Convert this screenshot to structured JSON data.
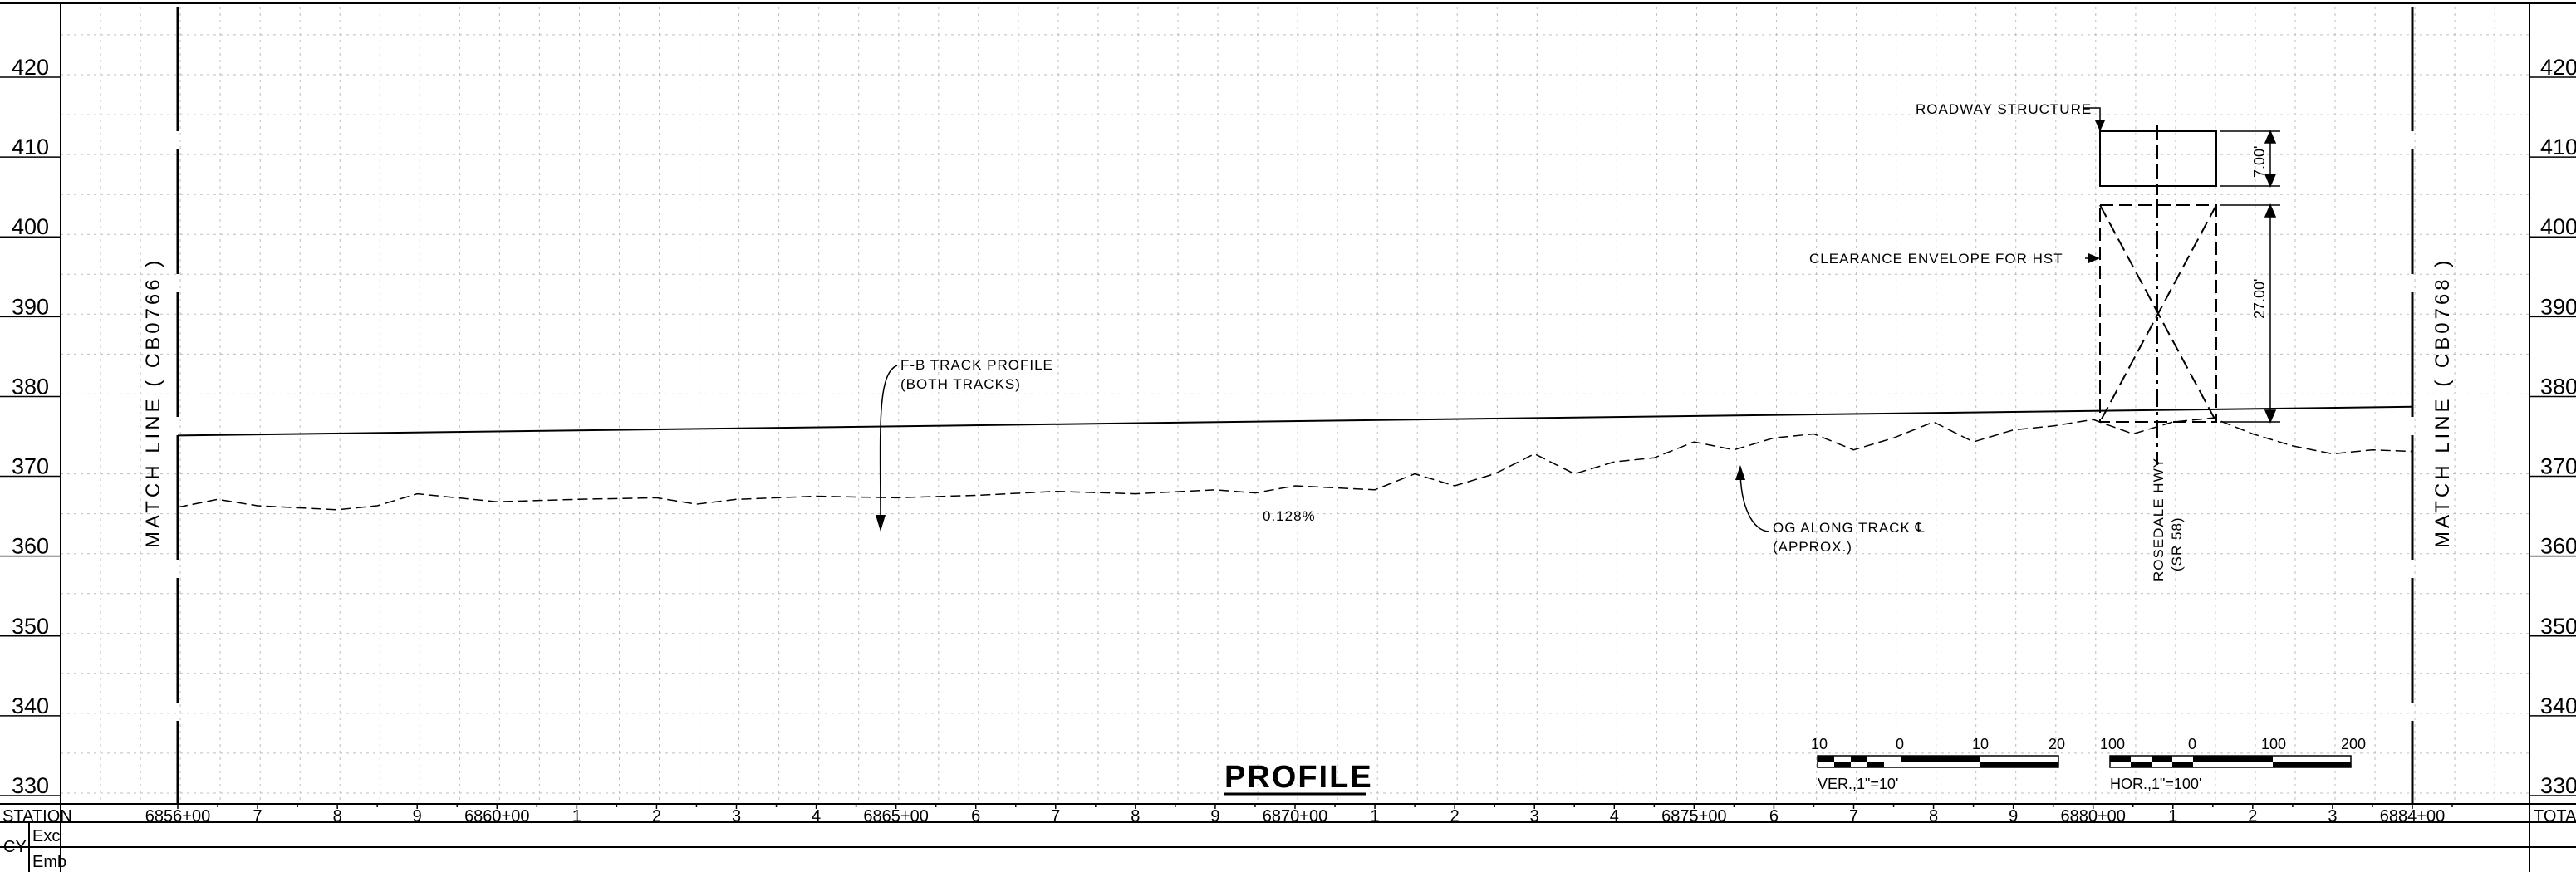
{
  "sheet": {
    "title": "PROFILE"
  },
  "elevations": {
    "labels": [
      "420",
      "410",
      "400",
      "390",
      "380",
      "370",
      "360",
      "350",
      "340",
      "330"
    ],
    "values": [
      420,
      410,
      400,
      390,
      380,
      370,
      360,
      350,
      340,
      330
    ]
  },
  "stations": {
    "row_label": "STATION",
    "total_label": "TOTA",
    "labels": [
      "6856+00",
      "7",
      "8",
      "9",
      "6860+00",
      "1",
      "2",
      "3",
      "4",
      "6865+00",
      "6",
      "7",
      "8",
      "9",
      "6870+00",
      "1",
      "2",
      "3",
      "4",
      "6875+00",
      "6",
      "7",
      "8",
      "9",
      "6880+00",
      "1",
      "2",
      "3",
      "6884+00"
    ]
  },
  "quantity_rows": {
    "group_label": "CY",
    "rows": [
      "Exc",
      "Emb"
    ]
  },
  "match_lines": {
    "left": "MATCH LINE ( CB0766 )",
    "right": "MATCH LINE ( CB0768 )"
  },
  "annotations": {
    "track_profile_line1": "F-B TRACK PROFILE",
    "track_profile_line2": "(BOTH TRACKS)",
    "grade": "0.128%",
    "og_line1": "OG ALONG TRACK ℄",
    "og_line2": "(APPROX.)",
    "roadway_structure": "ROADWAY STRUCTURE",
    "clearance_envelope": "CLEARANCE ENVELOPE FOR HST",
    "road_line1": "ROSEDALE HWY",
    "road_line2": "(SR 58)",
    "dim_structure": "7.00'",
    "dim_clearance": "27.00'"
  },
  "scales": {
    "vertical": {
      "label": "VER.,1\"=10'",
      "ticks": [
        "10",
        "0",
        "10",
        "20"
      ]
    },
    "horizontal": {
      "label": "HOR.,1\"=100'",
      "ticks": [
        "100",
        "0",
        "100",
        "200"
      ]
    }
  },
  "chart_data": {
    "type": "line",
    "title": "PROFILE",
    "xlabel": "STATION",
    "ylabel": "",
    "xlim": [
      685600,
      688400
    ],
    "ylim": [
      330,
      420
    ],
    "grid": true,
    "series": [
      {
        "name": "F-B TRACK PROFILE",
        "x": [
          685600,
          688400
        ],
        "y": [
          374.8,
          378.4
        ]
      },
      {
        "name": "OG ALONG TRACK",
        "x": [
          685600,
          685650,
          685700,
          685800,
          685850,
          685900,
          685950,
          686000,
          686100,
          686200,
          686250,
          686300,
          686400,
          686500,
          686600,
          686700,
          686800,
          686900,
          686950,
          687000,
          687100,
          687150,
          687200,
          687250,
          687300,
          687350,
          687400,
          687450,
          687500,
          687550,
          687600,
          687650,
          687700,
          687750,
          687800,
          687850,
          687900,
          687950,
          688000,
          688050,
          688100,
          688150,
          688200,
          688250,
          688300,
          688350,
          688400
        ],
        "y": [
          365.8,
          366.8,
          366.0,
          365.5,
          366.0,
          367.5,
          367.0,
          366.5,
          366.8,
          367.0,
          366.2,
          366.8,
          367.2,
          367.0,
          367.3,
          367.8,
          367.5,
          368.0,
          367.6,
          368.5,
          368.0,
          370.0,
          368.5,
          370.0,
          372.5,
          370.0,
          371.5,
          372.0,
          374.0,
          373.0,
          374.5,
          375.0,
          373.0,
          374.5,
          376.5,
          374.0,
          375.5,
          376.0,
          376.8,
          375.0,
          376.5,
          377.0,
          375.0,
          373.5,
          372.5,
          373.0,
          372.8
        ]
      }
    ]
  }
}
